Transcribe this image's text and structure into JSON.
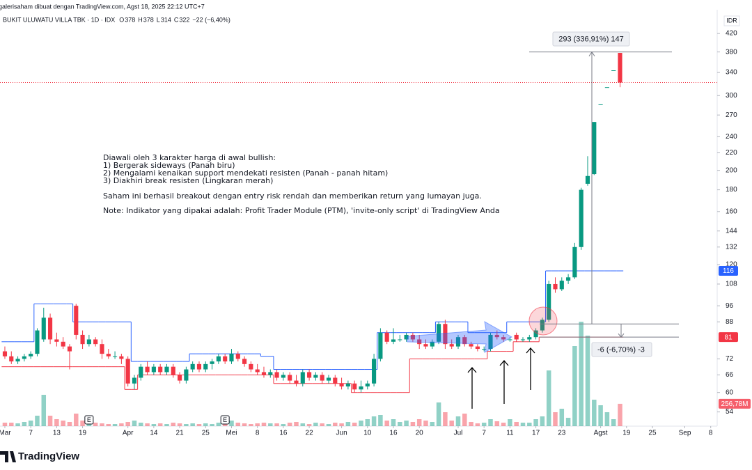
{
  "chart_data": {
    "type": "candlestick",
    "header": "galerisaham dibuat dengan TradingView.com, Agst 18, 2025 22:12 UTC+7",
    "title": "BUKIT ULUWATU VILLA TBK · 1D · IDX",
    "ohlc_legend": [
      {
        "label": "O",
        "value": 378
      },
      {
        "label": "H",
        "value": 378
      },
      {
        "label": "L",
        "value": 314
      },
      {
        "label": "C",
        "value": 322
      }
    ],
    "change": "−22 (−6,40%)",
    "currency": "IDR",
    "log_scale": true,
    "grid": false,
    "up_color": "#089981",
    "down_color": "#f23645",
    "ylim": [
      50,
      467
    ],
    "yticks": [
      420,
      380,
      340,
      300,
      270,
      240,
      220,
      200,
      180,
      160,
      144,
      132,
      120,
      108,
      96,
      88,
      72,
      66,
      60,
      54
    ],
    "xlim": [
      -0.75,
      110
    ],
    "xticks": [
      {
        "value": 0,
        "label": "Mar"
      },
      {
        "value": 4,
        "label": "7"
      },
      {
        "value": 8,
        "label": "13"
      },
      {
        "value": 12,
        "label": "19"
      },
      {
        "value": 19,
        "label": "Apr"
      },
      {
        "value": 23,
        "label": "14"
      },
      {
        "value": 27,
        "label": "21"
      },
      {
        "value": 31,
        "label": "25"
      },
      {
        "value": 35,
        "label": "Mei"
      },
      {
        "value": 39,
        "label": "8"
      },
      {
        "value": 43,
        "label": "16"
      },
      {
        "value": 47,
        "label": "22"
      },
      {
        "value": 52,
        "label": "Jun"
      },
      {
        "value": 56,
        "label": "10"
      },
      {
        "value": 60,
        "label": "16"
      },
      {
        "value": 64,
        "label": "20"
      },
      {
        "value": 70,
        "label": "Jul"
      },
      {
        "value": 74,
        "label": "7"
      },
      {
        "value": 78,
        "label": "11"
      },
      {
        "value": 82,
        "label": "17"
      },
      {
        "value": 86,
        "label": "23"
      },
      {
        "value": 92,
        "label": "Agst"
      },
      {
        "value": 96,
        "label": "19"
      },
      {
        "value": 100,
        "label": "25"
      },
      {
        "value": 105,
        "label": "Sep"
      },
      {
        "value": 109,
        "label": "8"
      }
    ],
    "open": [
      75,
      73,
      71,
      72,
      73,
      74,
      80,
      90,
      80,
      79,
      77,
      96,
      82,
      78,
      80,
      78,
      74,
      73,
      73,
      72,
      63,
      65,
      69,
      67,
      69,
      67,
      69,
      66,
      64,
      68,
      70,
      68,
      70,
      71,
      73,
      71,
      74,
      72,
      70,
      68,
      67,
      66,
      67,
      65,
      66,
      64,
      63,
      67,
      65,
      66,
      64,
      65,
      63,
      62,
      63,
      61,
      62,
      63,
      72,
      83,
      79,
      80,
      80,
      82,
      80,
      78,
      77,
      79,
      87,
      78,
      77,
      81,
      78,
      77,
      76,
      76,
      82,
      81,
      80,
      82,
      80,
      80,
      81,
      84,
      89,
      108,
      105,
      110,
      112,
      132,
      186,
      196,
      286,
      314,
      344,
      378
    ],
    "high": [
      77,
      75,
      73,
      74,
      75,
      85,
      95,
      92,
      83,
      81,
      78,
      97,
      84,
      82,
      81,
      80,
      76,
      75,
      74,
      73,
      66,
      70,
      71,
      70,
      70,
      70,
      70,
      67,
      69,
      71,
      71,
      71,
      72,
      74,
      74,
      76,
      75,
      73,
      71,
      70,
      69,
      68,
      68,
      67,
      67,
      66,
      68,
      68,
      67,
      67,
      66,
      66,
      65,
      64,
      64,
      64,
      64,
      74,
      85,
      84,
      85,
      82,
      83,
      83,
      82,
      80,
      80,
      88,
      89,
      80,
      82,
      82,
      79,
      78,
      77,
      83,
      84,
      82,
      81,
      83,
      81,
      82,
      85,
      90,
      110,
      112,
      112,
      114,
      135,
      182,
      216,
      260,
      286,
      314,
      344,
      378
    ],
    "low": [
      72,
      70,
      70,
      71,
      72,
      73,
      79,
      78,
      77,
      76,
      68,
      80,
      76,
      77,
      77,
      72,
      72,
      72,
      70,
      62,
      61,
      64,
      66,
      66,
      66,
      66,
      65,
      63,
      63,
      67,
      67,
      67,
      68,
      70,
      70,
      70,
      71,
      69,
      67,
      66,
      65,
      65,
      64,
      64,
      63,
      62,
      62,
      64,
      64,
      63,
      63,
      62,
      61,
      61,
      60,
      60,
      61,
      62,
      71,
      78,
      78,
      79,
      79,
      79,
      76,
      76,
      76,
      78,
      76,
      76,
      76,
      77,
      76,
      75,
      75,
      75,
      80,
      79,
      79,
      79,
      79,
      79,
      80,
      83,
      88,
      103,
      104,
      108,
      111,
      130,
      184,
      195,
      286,
      314,
      344,
      314
    ],
    "close": [
      73,
      71,
      72,
      73,
      74,
      84,
      90,
      80,
      79,
      77,
      75,
      82,
      78,
      80,
      78,
      74,
      73,
      73,
      72,
      63,
      65,
      69,
      67,
      69,
      67,
      69,
      66,
      64,
      68,
      70,
      68,
      70,
      71,
      73,
      71,
      74,
      72,
      70,
      68,
      67,
      66,
      67,
      65,
      66,
      64,
      63,
      67,
      65,
      66,
      64,
      65,
      63,
      62,
      63,
      61,
      62,
      63,
      72,
      83,
      79,
      80,
      80,
      82,
      80,
      78,
      77,
      79,
      87,
      78,
      77,
      81,
      78,
      77,
      76,
      76,
      82,
      81,
      80,
      80,
      80,
      80,
      81,
      84,
      89,
      108,
      105,
      110,
      112,
      132,
      180,
      194,
      260,
      286,
      314,
      344,
      322
    ],
    "volume": [
      40,
      40,
      32,
      48,
      64,
      120,
      360,
      120,
      80,
      64,
      48,
      144,
      64,
      48,
      40,
      32,
      24,
      24,
      32,
      48,
      64,
      40,
      32,
      24,
      32,
      24,
      40,
      32,
      24,
      32,
      24,
      32,
      24,
      40,
      48,
      64,
      40,
      32,
      24,
      32,
      40,
      32,
      32,
      24,
      40,
      48,
      32,
      24,
      40,
      32,
      24,
      40,
      32,
      48,
      40,
      64,
      80,
      112,
      128,
      64,
      80,
      48,
      64,
      48,
      80,
      64,
      48,
      272,
      160,
      64,
      112,
      144,
      48,
      32,
      40,
      80,
      56,
      40,
      80,
      48,
      40,
      40,
      80,
      112,
      640,
      160,
      200,
      96,
      920,
      1200,
      1040,
      304,
      240,
      160,
      80,
      256.78
    ],
    "volume_label": "256,78M",
    "resistance_color": "#2962ff",
    "support_color": "#f23645",
    "resistance": [
      79,
      79,
      79,
      79,
      79,
      97,
      97,
      97,
      97,
      97,
      97,
      88,
      88,
      88,
      88,
      88,
      88,
      88,
      88,
      88,
      71,
      71,
      71,
      71,
      71,
      71,
      71,
      71,
      71,
      74,
      74,
      74,
      74,
      74,
      74,
      74,
      74,
      74,
      74,
      74,
      73,
      73,
      68,
      68,
      68,
      68,
      68,
      68,
      68,
      68,
      68,
      68,
      68,
      68,
      68,
      68,
      68,
      68,
      83,
      83,
      83,
      83,
      83,
      83,
      83,
      83,
      83,
      88,
      88,
      88,
      88,
      88,
      83,
      83,
      83,
      83,
      83,
      83,
      88,
      88,
      88,
      88,
      88,
      88,
      116,
      116,
      116,
      116,
      116,
      116,
      116,
      116,
      116,
      116,
      116,
      116
    ],
    "support": [
      69,
      69,
      69,
      69,
      69,
      69,
      69,
      69,
      69,
      69,
      69,
      69,
      69,
      69,
      69,
      69,
      69,
      69,
      69,
      61,
      61,
      66,
      66,
      66,
      66,
      66,
      66,
      66,
      66,
      66,
      66,
      66,
      66,
      66,
      66,
      66,
      66,
      66,
      66,
      66,
      66,
      66,
      63,
      63,
      63,
      63,
      63,
      63,
      63,
      63,
      63,
      63,
      63,
      63,
      60,
      60,
      60,
      60,
      60,
      60,
      60,
      60,
      60,
      72,
      72,
      72,
      72,
      72,
      72,
      72,
      72,
      72,
      72,
      72,
      72,
      75,
      75,
      75,
      75,
      79,
      79,
      79,
      79,
      81,
      81,
      81,
      81,
      81,
      81,
      81,
      81,
      81,
      81,
      81,
      81,
      81
    ],
    "events": [
      {
        "x": 13,
        "label": "E"
      },
      {
        "x": 34,
        "label": "E"
      }
    ],
    "measures": [
      {
        "from": 87,
        "to": 380,
        "label": "293 (336,91%) 147"
      },
      {
        "from": 87,
        "to": 81,
        "label": "-6 (-6,70%) -3"
      }
    ],
    "notes": [
      "Diawali oleh 3 karakter harga di awal bullish:",
      "1) Bergerak sideways (Panah biru)",
      "2) Mengalami kenaikan support mendekati resisten (Panah - panah hitam)",
      "3) Diakhiri break resisten (Lingkaran merah)",
      "Saham ini berhasil breakout dengan entry risk rendah dan memberikan return yang lumayan juga.",
      "Note: Indikator yang dipakai adalah: Profit Trader Module (PTM), 'invite-only script' di TradingView Anda"
    ]
  },
  "brand": "TradingView"
}
